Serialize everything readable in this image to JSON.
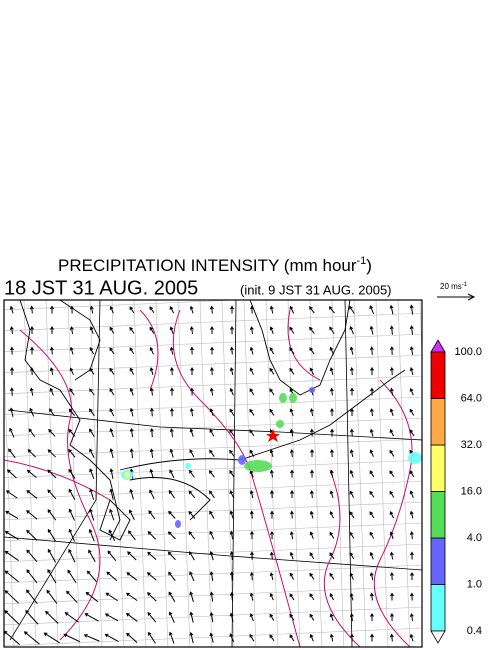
{
  "header": {
    "title": "PRECIPITATION INTENSITY (mm hour",
    "title_exponent": "-1",
    "title_close": ")",
    "valid_time": "18 JST 31 AUG. 2005",
    "init_time": "(init. 9 JST 31 AUG. 2005)"
  },
  "wind_scale": {
    "label": "20 ms",
    "exponent": "-1"
  },
  "colorbar": {
    "levels": [
      {
        "value": 0.4,
        "label": "0.4"
      },
      {
        "value": 1,
        "label": "1.0"
      },
      {
        "value": 4,
        "label": "4.0"
      },
      {
        "value": 16,
        "label": "16.0"
      },
      {
        "value": 32,
        "label": "32.0"
      },
      {
        "value": 64,
        "label": "64.0"
      },
      {
        "value": 100,
        "label": "100.0"
      }
    ],
    "colors": [
      "#66ffff",
      "#6666ff",
      "#55dd55",
      "#ffff66",
      "#ffaa44",
      "#ee0000"
    ],
    "over_color": "#cc33ff",
    "under_color": "#ffffff"
  }
}
